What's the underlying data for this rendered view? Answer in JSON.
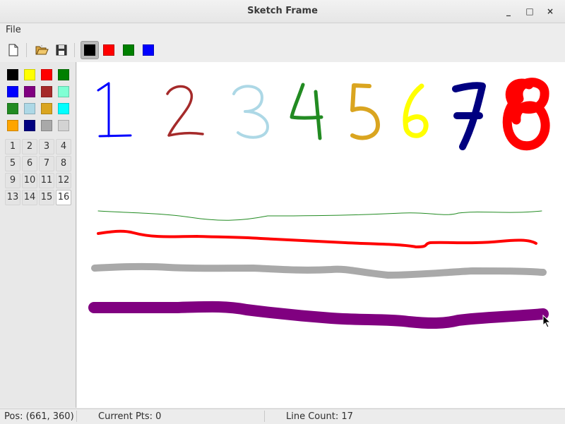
{
  "window": {
    "title": "Sketch Frame",
    "minimize_glyph": "_",
    "maximize_glyph": "□",
    "close_glyph": "×"
  },
  "menu": {
    "file_label": "File"
  },
  "toolbar": {
    "icons": [
      "new-file-icon",
      "open-folder-icon",
      "save-disk-icon"
    ],
    "colors": [
      {
        "name": "black",
        "hex": "#000000",
        "active": true
      },
      {
        "name": "red",
        "hex": "#ff0000",
        "active": false
      },
      {
        "name": "green",
        "hex": "#008000",
        "active": false
      },
      {
        "name": "blue",
        "hex": "#0000ff",
        "active": false
      }
    ]
  },
  "palette": {
    "colors": [
      {
        "name": "black",
        "hex": "#000000"
      },
      {
        "name": "yellow",
        "hex": "#ffff00"
      },
      {
        "name": "red",
        "hex": "#ff0000"
      },
      {
        "name": "green",
        "hex": "#008000"
      },
      {
        "name": "blue",
        "hex": "#0000ff"
      },
      {
        "name": "purple",
        "hex": "#800080"
      },
      {
        "name": "brown",
        "hex": "#a52a2a"
      },
      {
        "name": "aquamarine",
        "hex": "#7fffd4"
      },
      {
        "name": "forest-green",
        "hex": "#228b22"
      },
      {
        "name": "light-blue",
        "hex": "#add8e6"
      },
      {
        "name": "goldenrod",
        "hex": "#daa520"
      },
      {
        "name": "cyan",
        "hex": "#00ffff"
      },
      {
        "name": "orange",
        "hex": "#ffa500"
      },
      {
        "name": "navy",
        "hex": "#000080"
      },
      {
        "name": "dark-gray",
        "hex": "#a9a9a9"
      },
      {
        "name": "light-gray",
        "hex": "#d3d3d3"
      }
    ],
    "widths": [
      "1",
      "2",
      "3",
      "4",
      "5",
      "6",
      "7",
      "8",
      "9",
      "10",
      "11",
      "12",
      "13",
      "14",
      "15",
      "16"
    ],
    "active_width": "16"
  },
  "canvas": {
    "digits": [
      {
        "text": "1",
        "color": "#0000ff"
      },
      {
        "text": "2",
        "color": "#a52a2a"
      },
      {
        "text": "3",
        "color": "#add8e6"
      },
      {
        "text": "4",
        "color": "#228b22"
      },
      {
        "text": "5",
        "color": "#daa520"
      },
      {
        "text": "6",
        "color": "#ffff00"
      },
      {
        "text": "7",
        "color": "#000080"
      },
      {
        "text": "8",
        "color": "#ff0000"
      }
    ],
    "strokes": [
      {
        "color": "#228b22",
        "width": 1
      },
      {
        "color": "#ff0000",
        "width": 4
      },
      {
        "color": "#a9a9a9",
        "width": 10
      },
      {
        "color": "#800080",
        "width": 16
      }
    ]
  },
  "status": {
    "pos": "Pos: (661, 360)",
    "current_pts": "Current Pts: 0",
    "line_count": "Line Count: 17"
  }
}
